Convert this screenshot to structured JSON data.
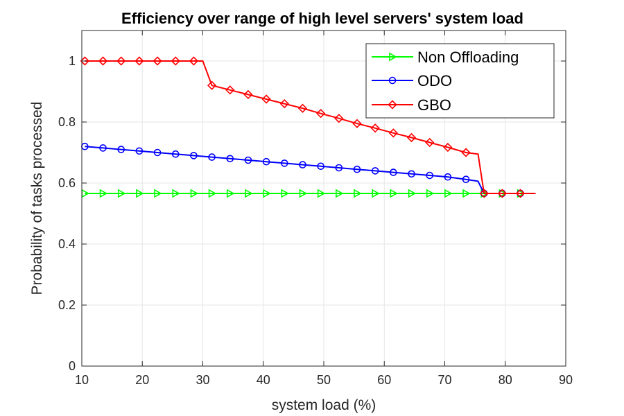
{
  "chart_data": {
    "type": "line",
    "title": "Efficiency over range of high level servers' system load",
    "xlabel": "system load (%)",
    "ylabel": "Probability of tasks processed",
    "xlim": [
      10,
      90
    ],
    "ylim": [
      0,
      1.1
    ],
    "xticks": [
      10,
      20,
      30,
      40,
      50,
      60,
      70,
      80,
      90
    ],
    "yticks": [
      0,
      0.2,
      0.4,
      0.6,
      0.8,
      1
    ],
    "grid": true,
    "legend_position": "top-right",
    "series": [
      {
        "name": "Non Offloading",
        "color": "#00ff00",
        "marker": "triangle-right",
        "x": [
          10.5,
          13.5,
          16.5,
          19.5,
          22.5,
          25.5,
          28.5,
          31.5,
          34.5,
          37.5,
          40.5,
          43.5,
          46.5,
          49.5,
          52.5,
          55.5,
          58.5,
          61.5,
          64.5,
          67.5,
          70.5,
          73.5,
          76.5,
          79.5,
          82.5,
          85
        ],
        "y": [
          0.566,
          0.566,
          0.566,
          0.566,
          0.566,
          0.566,
          0.566,
          0.566,
          0.566,
          0.566,
          0.566,
          0.566,
          0.566,
          0.566,
          0.566,
          0.566,
          0.566,
          0.566,
          0.566,
          0.566,
          0.566,
          0.566,
          0.566,
          0.566,
          0.566,
          0.566
        ],
        "markers": [
          true,
          true,
          true,
          true,
          true,
          true,
          true,
          true,
          true,
          true,
          true,
          true,
          true,
          true,
          true,
          true,
          true,
          true,
          true,
          true,
          true,
          true,
          true,
          true,
          true,
          false
        ]
      },
      {
        "name": "ODO",
        "color": "#0000ff",
        "marker": "circle",
        "x": [
          10.5,
          13.5,
          16.5,
          19.5,
          22.5,
          25.5,
          28.5,
          31.5,
          34.5,
          37.5,
          40.5,
          43.5,
          46.5,
          49.5,
          52.5,
          55.5,
          58.5,
          61.5,
          64.5,
          67.5,
          70.5,
          73.5,
          75.5,
          76.5,
          79.5,
          82.5,
          85
        ],
        "y": [
          0.72,
          0.715,
          0.71,
          0.705,
          0.7,
          0.695,
          0.69,
          0.685,
          0.68,
          0.675,
          0.67,
          0.665,
          0.66,
          0.655,
          0.65,
          0.645,
          0.64,
          0.635,
          0.63,
          0.625,
          0.62,
          0.612,
          0.606,
          0.566,
          0.566,
          0.566,
          0.566
        ],
        "markers": [
          true,
          true,
          true,
          true,
          true,
          true,
          true,
          true,
          true,
          true,
          true,
          true,
          true,
          true,
          true,
          true,
          true,
          true,
          true,
          true,
          true,
          true,
          false,
          true,
          true,
          true,
          false
        ]
      },
      {
        "name": "GBO",
        "color": "#ff0000",
        "marker": "diamond",
        "x": [
          10.5,
          13.5,
          16.5,
          19.5,
          22.5,
          25.5,
          28.5,
          30.0,
          31.5,
          34.5,
          37.5,
          40.5,
          43.5,
          46.5,
          49.5,
          52.5,
          55.5,
          58.5,
          61.5,
          64.5,
          67.5,
          70.5,
          73.5,
          75.5,
          76.5,
          79.5,
          82.5,
          85
        ],
        "y": [
          1.0,
          1.0,
          1.0,
          1.0,
          1.0,
          1.0,
          1.0,
          1.0,
          0.92,
          0.905,
          0.89,
          0.875,
          0.86,
          0.845,
          0.828,
          0.812,
          0.795,
          0.78,
          0.764,
          0.749,
          0.733,
          0.717,
          0.7,
          0.695,
          0.566,
          0.566,
          0.566,
          0.566
        ],
        "markers": [
          true,
          true,
          true,
          true,
          true,
          true,
          true,
          false,
          true,
          true,
          true,
          true,
          true,
          true,
          true,
          true,
          true,
          true,
          true,
          true,
          true,
          true,
          true,
          false,
          true,
          true,
          true,
          false
        ]
      }
    ]
  }
}
